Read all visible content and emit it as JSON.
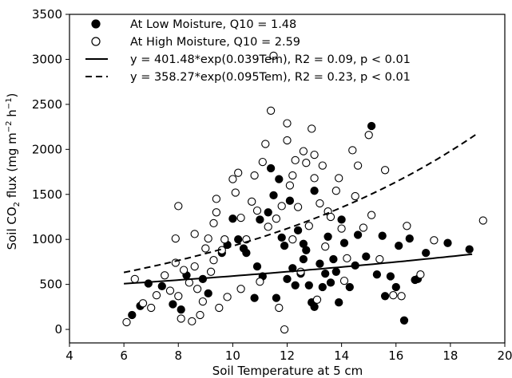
{
  "chart_data": {
    "type": "scatter",
    "title": "",
    "xlabel": "Soil Temperature at 5 cm",
    "ylabel": "Soil CO2 flux (mg m-2 h-1)",
    "xlim": [
      4,
      20
    ],
    "ylim": [
      -150,
      3500
    ],
    "xticks": [
      4,
      6,
      8,
      10,
      12,
      14,
      16,
      18,
      20
    ],
    "yticks": [
      0,
      500,
      1000,
      1500,
      2000,
      2500,
      3000,
      3500
    ],
    "grid": false,
    "legend_position": "top-left",
    "legend": [
      {
        "marker": "filled-circle",
        "text": "At Low Moisture, Q10 = 1.48"
      },
      {
        "marker": "open-circle",
        "text": "At High Moisture, Q10 = 2.59"
      },
      {
        "line": "solid",
        "text": "y = 401.48*exp(0.039Tem), R2 = 0.09, p < 0.01"
      },
      {
        "line": "dashed",
        "text": "y = 358.27*exp(0.095Tem), R2 = 0.23, p < 0.01"
      }
    ],
    "series": [
      {
        "name": "At Low Moisture",
        "marker": "filled-circle",
        "points": [
          [
            6.3,
            160
          ],
          [
            6.6,
            260
          ],
          [
            6.9,
            510
          ],
          [
            7.4,
            480
          ],
          [
            7.8,
            280
          ],
          [
            8.1,
            220
          ],
          [
            8.3,
            600
          ],
          [
            8.9,
            560
          ],
          [
            9.1,
            400
          ],
          [
            9.6,
            850
          ],
          [
            9.8,
            940
          ],
          [
            10.0,
            1230
          ],
          [
            10.2,
            1000
          ],
          [
            10.4,
            900
          ],
          [
            10.5,
            850
          ],
          [
            10.8,
            350
          ],
          [
            10.9,
            700
          ],
          [
            11.0,
            1220
          ],
          [
            11.1,
            590
          ],
          [
            11.3,
            1300
          ],
          [
            11.4,
            1790
          ],
          [
            11.5,
            1490
          ],
          [
            11.6,
            350
          ],
          [
            11.7,
            1670
          ],
          [
            11.8,
            1020
          ],
          [
            11.9,
            930
          ],
          [
            12.0,
            560
          ],
          [
            12.1,
            1430
          ],
          [
            12.2,
            680
          ],
          [
            12.3,
            490
          ],
          [
            12.4,
            1100
          ],
          [
            12.5,
            620
          ],
          [
            12.6,
            950
          ],
          [
            12.6,
            780
          ],
          [
            12.7,
            880
          ],
          [
            12.8,
            490
          ],
          [
            12.9,
            300
          ],
          [
            13.0,
            1540
          ],
          [
            13.0,
            250
          ],
          [
            13.2,
            730
          ],
          [
            13.3,
            470
          ],
          [
            13.4,
            620
          ],
          [
            13.5,
            1030
          ],
          [
            13.6,
            520
          ],
          [
            13.7,
            780
          ],
          [
            13.8,
            640
          ],
          [
            13.9,
            300
          ],
          [
            14.0,
            1220
          ],
          [
            14.1,
            960
          ],
          [
            14.3,
            470
          ],
          [
            14.5,
            710
          ],
          [
            14.6,
            1050
          ],
          [
            14.9,
            810
          ],
          [
            15.1,
            2260
          ],
          [
            15.3,
            610
          ],
          [
            15.5,
            1040
          ],
          [
            15.6,
            370
          ],
          [
            15.8,
            590
          ],
          [
            16.0,
            470
          ],
          [
            16.1,
            930
          ],
          [
            16.3,
            100
          ],
          [
            16.5,
            1010
          ],
          [
            16.7,
            550
          ],
          [
            16.8,
            560
          ],
          [
            17.1,
            850
          ],
          [
            17.9,
            960
          ],
          [
            18.7,
            890
          ]
        ]
      },
      {
        "name": "At High Moisture",
        "marker": "open-circle",
        "points": [
          [
            6.1,
            80
          ],
          [
            6.4,
            560
          ],
          [
            6.7,
            290
          ],
          [
            7.0,
            240
          ],
          [
            7.2,
            380
          ],
          [
            7.5,
            600
          ],
          [
            7.7,
            430
          ],
          [
            7.9,
            1010
          ],
          [
            7.9,
            740
          ],
          [
            8.0,
            370
          ],
          [
            8.0,
            1370
          ],
          [
            8.1,
            120
          ],
          [
            8.2,
            660
          ],
          [
            8.4,
            520
          ],
          [
            8.5,
            90
          ],
          [
            8.6,
            1060
          ],
          [
            8.6,
            700
          ],
          [
            8.7,
            450
          ],
          [
            8.8,
            160
          ],
          [
            8.9,
            310
          ],
          [
            9.0,
            900
          ],
          [
            9.1,
            1010
          ],
          [
            9.2,
            640
          ],
          [
            9.3,
            1180
          ],
          [
            9.3,
            770
          ],
          [
            9.4,
            1300
          ],
          [
            9.4,
            1450
          ],
          [
            9.5,
            240
          ],
          [
            9.6,
            880
          ],
          [
            9.7,
            1000
          ],
          [
            9.8,
            360
          ],
          [
            10.0,
            1670
          ],
          [
            10.1,
            1520
          ],
          [
            10.2,
            1740
          ],
          [
            10.3,
            1240
          ],
          [
            10.3,
            450
          ],
          [
            10.5,
            1000
          ],
          [
            10.7,
            1420
          ],
          [
            10.8,
            1710
          ],
          [
            10.9,
            1320
          ],
          [
            11.0,
            530
          ],
          [
            11.1,
            1860
          ],
          [
            11.2,
            2060
          ],
          [
            11.3,
            1140
          ],
          [
            11.4,
            2430
          ],
          [
            11.5,
            3040
          ],
          [
            11.6,
            1230
          ],
          [
            11.7,
            240
          ],
          [
            11.8,
            1370
          ],
          [
            11.9,
            0
          ],
          [
            12.0,
            2290
          ],
          [
            12.0,
            2100
          ],
          [
            12.1,
            1600
          ],
          [
            12.2,
            1000
          ],
          [
            12.2,
            1710
          ],
          [
            12.3,
            1880
          ],
          [
            12.4,
            1360
          ],
          [
            12.5,
            640
          ],
          [
            12.6,
            1980
          ],
          [
            12.7,
            1850
          ],
          [
            12.8,
            1150
          ],
          [
            12.9,
            2230
          ],
          [
            13.0,
            1680
          ],
          [
            13.0,
            1940
          ],
          [
            13.1,
            330
          ],
          [
            13.2,
            1400
          ],
          [
            13.3,
            1820
          ],
          [
            13.4,
            920
          ],
          [
            13.5,
            1310
          ],
          [
            13.6,
            1250
          ],
          [
            13.8,
            1540
          ],
          [
            13.9,
            1680
          ],
          [
            14.0,
            1120
          ],
          [
            14.1,
            540
          ],
          [
            14.2,
            790
          ],
          [
            14.4,
            1990
          ],
          [
            14.5,
            1480
          ],
          [
            14.6,
            1820
          ],
          [
            14.8,
            1130
          ],
          [
            15.0,
            2160
          ],
          [
            15.1,
            1270
          ],
          [
            15.4,
            780
          ],
          [
            15.6,
            1770
          ],
          [
            15.9,
            380
          ],
          [
            16.2,
            370
          ],
          [
            16.4,
            1150
          ],
          [
            16.9,
            610
          ],
          [
            17.4,
            990
          ],
          [
            19.2,
            1210
          ]
        ]
      },
      {
        "name": "y = 401.48*exp(0.039Tem)",
        "line": "solid",
        "x_range": [
          6,
          18.8
        ],
        "equation": {
          "a": 401.48,
          "b": 0.039
        }
      },
      {
        "name": "y = 358.27*exp(0.095Tem)",
        "line": "dashed",
        "x_range": [
          6,
          19
        ],
        "equation": {
          "a": 358.27,
          "b": 0.095
        }
      }
    ]
  }
}
